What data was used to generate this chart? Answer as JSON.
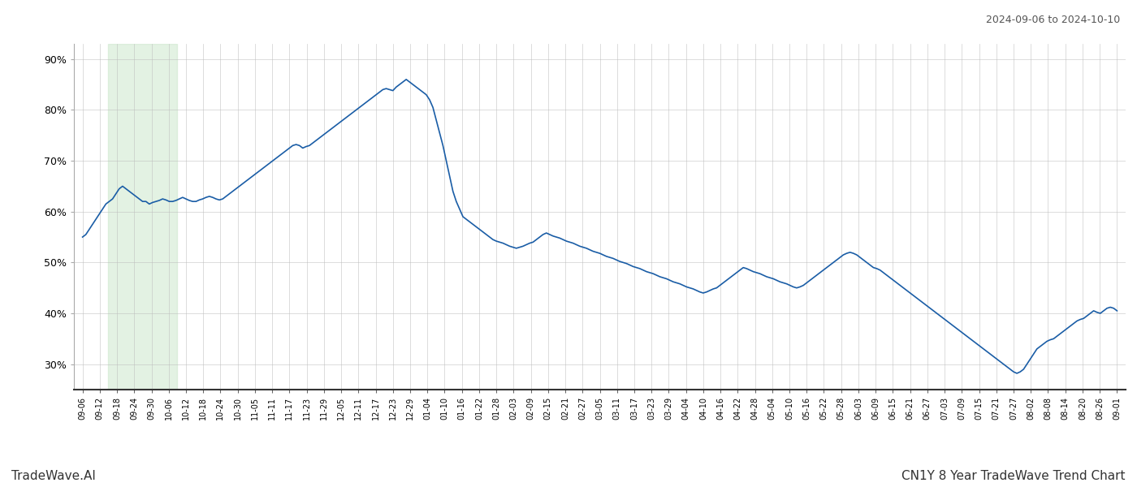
{
  "title_top_right": "2024-09-06 to 2024-10-10",
  "title_bottom_right": "CN1Y 8 Year TradeWave Trend Chart",
  "title_bottom_left": "TradeWave.AI",
  "line_color": "#1a5da6",
  "line_width": 1.2,
  "highlight_color": "#c8e6c9",
  "highlight_alpha": 0.5,
  "background_color": "#ffffff",
  "grid_color": "#bbbbbb",
  "ylim": [
    25,
    93
  ],
  "yticks": [
    30,
    40,
    50,
    60,
    70,
    80,
    90
  ],
  "x_labels": [
    "09-06",
    "09-12",
    "09-18",
    "09-24",
    "09-30",
    "10-06",
    "10-12",
    "10-18",
    "10-24",
    "10-30",
    "11-05",
    "11-11",
    "11-17",
    "11-23",
    "11-29",
    "12-05",
    "12-11",
    "12-17",
    "12-23",
    "12-29",
    "01-04",
    "01-10",
    "01-16",
    "01-22",
    "01-28",
    "02-03",
    "02-09",
    "02-15",
    "02-21",
    "02-27",
    "03-05",
    "03-11",
    "03-17",
    "03-23",
    "03-29",
    "04-04",
    "04-10",
    "04-16",
    "04-22",
    "04-28",
    "05-04",
    "05-10",
    "05-16",
    "05-22",
    "05-28",
    "06-03",
    "06-09",
    "06-15",
    "06-21",
    "06-27",
    "07-03",
    "07-09",
    "07-15",
    "07-21",
    "07-27",
    "08-02",
    "08-08",
    "08-14",
    "08-20",
    "08-26",
    "09-01"
  ],
  "highlight_x_start": "09-18",
  "highlight_x_end": "10-06",
  "y_values_dense": [
    55.0,
    55.5,
    56.5,
    57.5,
    58.5,
    59.5,
    60.5,
    61.5,
    62.0,
    62.5,
    63.5,
    64.5,
    65.0,
    64.5,
    64.0,
    63.5,
    63.0,
    62.5,
    62.0,
    62.0,
    61.5,
    61.8,
    62.0,
    62.2,
    62.5,
    62.3,
    62.0,
    62.0,
    62.2,
    62.5,
    62.8,
    62.5,
    62.2,
    62.0,
    62.0,
    62.3,
    62.5,
    62.8,
    63.0,
    62.8,
    62.5,
    62.3,
    62.5,
    63.0,
    63.5,
    64.0,
    64.5,
    65.0,
    65.5,
    66.0,
    66.5,
    67.0,
    67.5,
    68.0,
    68.5,
    69.0,
    69.5,
    70.0,
    70.5,
    71.0,
    71.5,
    72.0,
    72.5,
    73.0,
    73.2,
    73.0,
    72.5,
    72.8,
    73.0,
    73.5,
    74.0,
    74.5,
    75.0,
    75.5,
    76.0,
    76.5,
    77.0,
    77.5,
    78.0,
    78.5,
    79.0,
    79.5,
    80.0,
    80.5,
    81.0,
    81.5,
    82.0,
    82.5,
    83.0,
    83.5,
    84.0,
    84.2,
    84.0,
    83.8,
    84.5,
    85.0,
    85.5,
    86.0,
    85.5,
    85.0,
    84.5,
    84.0,
    83.5,
    83.0,
    82.0,
    80.5,
    78.0,
    75.5,
    73.0,
    70.0,
    67.0,
    64.0,
    62.0,
    60.5,
    59.0,
    58.5,
    58.0,
    57.5,
    57.0,
    56.5,
    56.0,
    55.5,
    55.0,
    54.5,
    54.2,
    54.0,
    53.8,
    53.5,
    53.2,
    53.0,
    52.8,
    53.0,
    53.2,
    53.5,
    53.8,
    54.0,
    54.5,
    55.0,
    55.5,
    55.8,
    55.5,
    55.2,
    55.0,
    54.8,
    54.5,
    54.2,
    54.0,
    53.8,
    53.5,
    53.2,
    53.0,
    52.8,
    52.5,
    52.2,
    52.0,
    51.8,
    51.5,
    51.2,
    51.0,
    50.8,
    50.5,
    50.2,
    50.0,
    49.8,
    49.5,
    49.2,
    49.0,
    48.8,
    48.5,
    48.2,
    48.0,
    47.8,
    47.5,
    47.2,
    47.0,
    46.8,
    46.5,
    46.2,
    46.0,
    45.8,
    45.5,
    45.2,
    45.0,
    44.8,
    44.5,
    44.2,
    44.0,
    44.2,
    44.5,
    44.8,
    45.0,
    45.5,
    46.0,
    46.5,
    47.0,
    47.5,
    48.0,
    48.5,
    49.0,
    48.8,
    48.5,
    48.2,
    48.0,
    47.8,
    47.5,
    47.2,
    47.0,
    46.8,
    46.5,
    46.2,
    46.0,
    45.8,
    45.5,
    45.2,
    45.0,
    45.2,
    45.5,
    46.0,
    46.5,
    47.0,
    47.5,
    48.0,
    48.5,
    49.0,
    49.5,
    50.0,
    50.5,
    51.0,
    51.5,
    51.8,
    52.0,
    51.8,
    51.5,
    51.0,
    50.5,
    50.0,
    49.5,
    49.0,
    48.8,
    48.5,
    48.0,
    47.5,
    47.0,
    46.5,
    46.0,
    45.5,
    45.0,
    44.5,
    44.0,
    43.5,
    43.0,
    42.5,
    42.0,
    41.5,
    41.0,
    40.5,
    40.0,
    39.5,
    39.0,
    38.5,
    38.0,
    37.5,
    37.0,
    36.5,
    36.0,
    35.5,
    35.0,
    34.5,
    34.0,
    33.5,
    33.0,
    32.5,
    32.0,
    31.5,
    31.0,
    30.5,
    30.0,
    29.5,
    29.0,
    28.5,
    28.2,
    28.5,
    29.0,
    30.0,
    31.0,
    32.0,
    33.0,
    33.5,
    34.0,
    34.5,
    34.8,
    35.0,
    35.5,
    36.0,
    36.5,
    37.0,
    37.5,
    38.0,
    38.5,
    38.8,
    39.0,
    39.5,
    40.0,
    40.5,
    40.2,
    40.0,
    40.5,
    41.0,
    41.2,
    41.0,
    40.5
  ]
}
